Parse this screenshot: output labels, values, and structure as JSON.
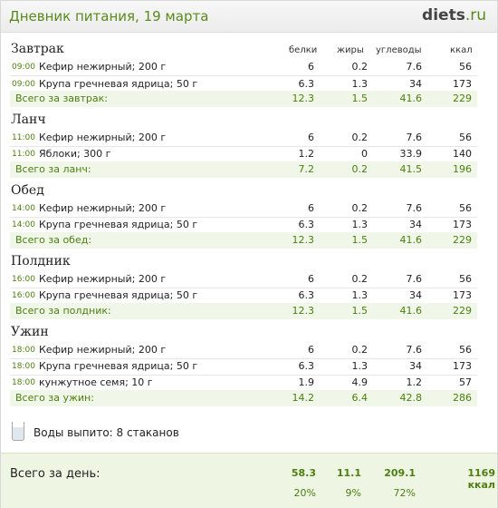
{
  "header": {
    "title": "Дневник питания, 19 марта",
    "logo_main": "diets",
    "logo_tld": ".ru"
  },
  "columns": {
    "protein": "белки",
    "fat": "жиры",
    "carbs": "углеводы",
    "kcal": "ккал"
  },
  "meals": [
    {
      "title": "Завтрак",
      "items": [
        {
          "time": "09:00",
          "name": "Кефир нежирный; 200 г",
          "p": "6",
          "f": "0.2",
          "c": "7.6",
          "k": "56"
        },
        {
          "time": "09:00",
          "name": "Крупа гречневая ядрица; 50 г",
          "p": "6.3",
          "f": "1.3",
          "c": "34",
          "k": "173"
        }
      ],
      "total": {
        "label": "Всего за завтрак:",
        "p": "12.3",
        "f": "1.5",
        "c": "41.6",
        "k": "229"
      }
    },
    {
      "title": "Ланч",
      "items": [
        {
          "time": "11:00",
          "name": "Кефир нежирный; 200 г",
          "p": "6",
          "f": "0.2",
          "c": "7.6",
          "k": "56"
        },
        {
          "time": "11:00",
          "name": "Яблоки; 300 г",
          "p": "1.2",
          "f": "0",
          "c": "33.9",
          "k": "140"
        }
      ],
      "total": {
        "label": "Всего за ланч:",
        "p": "7.2",
        "f": "0.2",
        "c": "41.5",
        "k": "196"
      }
    },
    {
      "title": "Обед",
      "items": [
        {
          "time": "14:00",
          "name": "Кефир нежирный; 200 г",
          "p": "6",
          "f": "0.2",
          "c": "7.6",
          "k": "56"
        },
        {
          "time": "14:00",
          "name": "Крупа гречневая ядрица; 50 г",
          "p": "6.3",
          "f": "1.3",
          "c": "34",
          "k": "173"
        }
      ],
      "total": {
        "label": "Всего за обед:",
        "p": "12.3",
        "f": "1.5",
        "c": "41.6",
        "k": "229"
      }
    },
    {
      "title": "Полдник",
      "items": [
        {
          "time": "16:00",
          "name": "Кефир нежирный; 200 г",
          "p": "6",
          "f": "0.2",
          "c": "7.6",
          "k": "56"
        },
        {
          "time": "16:00",
          "name": "Крупа гречневая ядрица; 50 г",
          "p": "6.3",
          "f": "1.3",
          "c": "34",
          "k": "173"
        }
      ],
      "total": {
        "label": "Всего за полдник:",
        "p": "12.3",
        "f": "1.5",
        "c": "41.6",
        "k": "229"
      }
    },
    {
      "title": "Ужин",
      "items": [
        {
          "time": "18:00",
          "name": "Кефир нежирный; 200 г",
          "p": "6",
          "f": "0.2",
          "c": "7.6",
          "k": "56"
        },
        {
          "time": "18:00",
          "name": "Крупа гречневая ядрица; 50 г",
          "p": "6.3",
          "f": "1.3",
          "c": "34",
          "k": "173"
        },
        {
          "time": "18:00",
          "name": "кунжутное семя; 10 г",
          "p": "1.9",
          "f": "4.9",
          "c": "1.2",
          "k": "57"
        }
      ],
      "total": {
        "label": "Всего за ужин:",
        "p": "14.2",
        "f": "6.4",
        "c": "42.8",
        "k": "286"
      }
    }
  ],
  "water": {
    "icon": "glass-icon",
    "text": "Воды выпито: 8 стаканов"
  },
  "day": {
    "label": "Всего за день:",
    "p": "58.3",
    "f": "11.1",
    "c": "209.1",
    "k": "1169 ккал",
    "p_pct": "20%",
    "f_pct": "9%",
    "c_pct": "72%"
  },
  "colors": {
    "accent": "#4d7f12",
    "total_bg": "#f0f6e8",
    "day_bg": "#eef5e2"
  }
}
